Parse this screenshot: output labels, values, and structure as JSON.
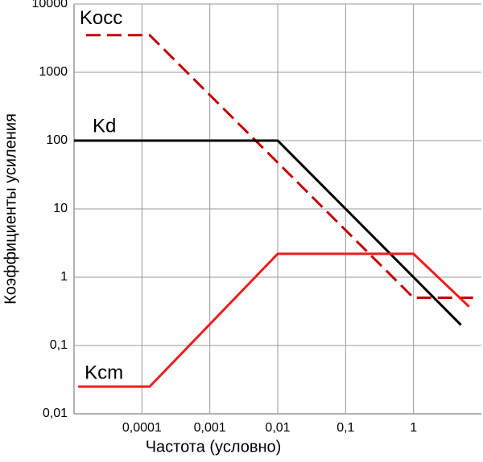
{
  "chart_data": {
    "type": "line",
    "log_x": true,
    "log_y": true,
    "grid": true,
    "xlabel": "Частота (условно)",
    "ylabel": "Коэффициенты усиления",
    "xlim": [
      1e-05,
      10
    ],
    "ylim": [
      0.01,
      10000
    ],
    "xticks": [
      {
        "value": 0.0001,
        "label": "0,0001"
      },
      {
        "value": 0.001,
        "label": "0,001"
      },
      {
        "value": 0.01,
        "label": "0,01"
      },
      {
        "value": 0.1,
        "label": "0,1"
      },
      1
    ],
    "yticks": [
      {
        "value": 0.01,
        "label": "0,01"
      },
      {
        "value": 0.1,
        "label": "0,1"
      },
      1,
      10,
      100,
      1000,
      10000
    ],
    "series": [
      {
        "name": "Kocc",
        "color": "#c00000",
        "dashed": true,
        "x": [
          1.5e-05,
          0.00013,
          1,
          9
        ],
        "values": [
          3500,
          3500,
          0.5,
          0.5
        ]
      },
      {
        "name": "Kd",
        "color": "#000000",
        "dashed": false,
        "x": [
          1e-05,
          0.01,
          5
        ],
        "values": [
          100,
          100,
          0.2
        ]
      },
      {
        "name": "Kcm",
        "color": "#ee1c1c",
        "dashed": false,
        "x": [
          1.15e-05,
          0.00013,
          0.01,
          1,
          6.6
        ],
        "values": [
          0.025,
          0.025,
          2.2,
          2.2,
          0.37
        ]
      }
    ]
  }
}
